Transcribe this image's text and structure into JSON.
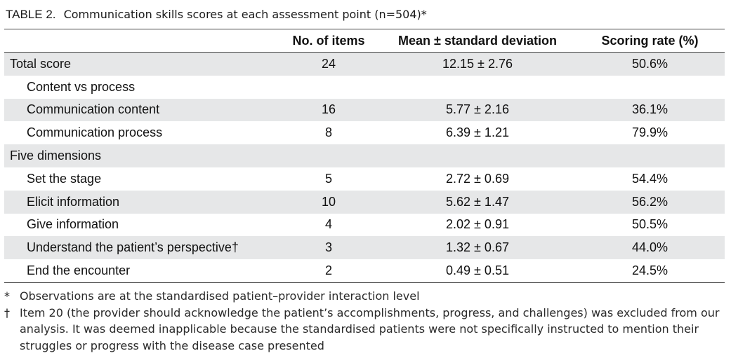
{
  "caption": {
    "label": "TABLE 2.",
    "text": "Communication skills scores at each assessment point (n=504)*"
  },
  "table": {
    "headers": [
      "",
      "No. of items",
      "Mean ± standard deviation",
      "Scoring rate (%)"
    ],
    "rows": [
      {
        "label": "Total score",
        "items": "24",
        "mean": "12.15 ± 2.76",
        "rate": "50.6%"
      },
      {
        "label": "Content vs process",
        "items": "",
        "mean": "",
        "rate": ""
      },
      {
        "label": "Communication content",
        "items": "16",
        "mean": "5.77 ± 2.16",
        "rate": "36.1%"
      },
      {
        "label": "Communication process",
        "items": "8",
        "mean": "6.39 ± 1.21",
        "rate": "79.9%"
      },
      {
        "label": "Five dimensions",
        "items": "",
        "mean": "",
        "rate": ""
      },
      {
        "label": "Set the stage",
        "items": "5",
        "mean": "2.72 ± 0.69",
        "rate": "54.4%"
      },
      {
        "label": "Elicit information",
        "items": "10",
        "mean": "5.62 ± 1.47",
        "rate": "56.2%"
      },
      {
        "label": "Give information",
        "items": "4",
        "mean": "2.02 ± 0.91",
        "rate": "50.5%"
      },
      {
        "label": "Understand the patient’s perspective†",
        "items": "3",
        "mean": "1.32 ± 0.67",
        "rate": "44.0%"
      },
      {
        "label": "End the encounter",
        "items": "2",
        "mean": "0.49 ± 0.51",
        "rate": "24.5%"
      }
    ]
  },
  "footnotes": [
    {
      "symbol": "*",
      "text": "Observations are at the standardised patient–provider interaction level"
    },
    {
      "symbol": "†",
      "text": "Item 20 (the provider should acknowledge the patient’s accomplishments, progress, and challenges) was excluded from our analysis. It was deemed inapplicable because the standardised patients were not specifically instructed to mention their struggles or progress with the disease case presented"
    }
  ]
}
